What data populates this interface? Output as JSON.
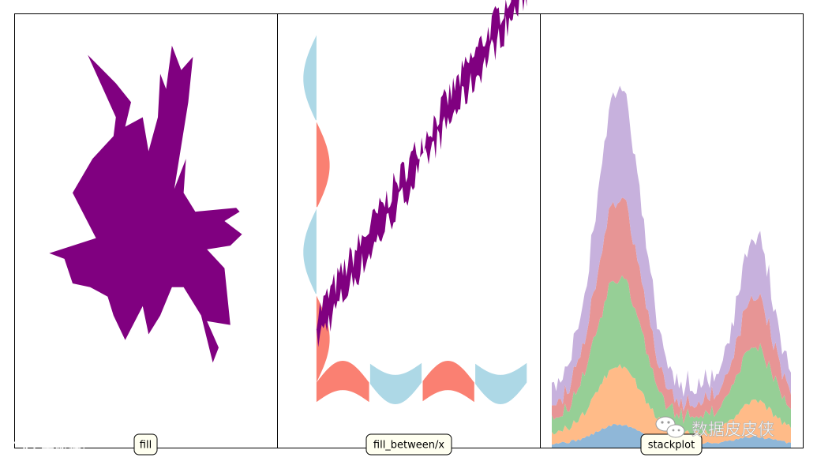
{
  "chart_data": [
    {
      "type": "area",
      "label": "fill",
      "fill_color": "#800080",
      "polygon_xy": [
        [
          -0.95,
          -0.12
        ],
        [
          -0.55,
          -0.04
        ],
        [
          -0.75,
          0.2
        ],
        [
          -0.58,
          0.38
        ],
        [
          -0.4,
          0.5
        ],
        [
          -0.38,
          0.6
        ],
        [
          -0.62,
          0.93
        ],
        [
          -0.38,
          0.78
        ],
        [
          -0.25,
          0.68
        ],
        [
          -0.3,
          0.55
        ],
        [
          -0.15,
          0.6
        ],
        [
          -0.1,
          0.42
        ],
        [
          -0.02,
          0.6
        ],
        [
          0.0,
          0.83
        ],
        [
          0.05,
          0.75
        ],
        [
          0.1,
          0.98
        ],
        [
          0.18,
          0.85
        ],
        [
          0.28,
          0.92
        ],
        [
          0.24,
          0.68
        ],
        [
          0.12,
          0.22
        ],
        [
          0.22,
          0.38
        ],
        [
          0.2,
          0.2
        ],
        [
          0.3,
          0.1
        ],
        [
          0.65,
          0.12
        ],
        [
          0.68,
          0.1
        ],
        [
          0.55,
          0.05
        ],
        [
          0.7,
          -0.02
        ],
        [
          0.6,
          -0.08
        ],
        [
          0.4,
          -0.1
        ],
        [
          0.55,
          -0.2
        ],
        [
          0.6,
          -0.5
        ],
        [
          0.4,
          -0.48
        ],
        [
          0.5,
          -0.62
        ],
        [
          0.45,
          -0.7
        ],
        [
          0.35,
          -0.45
        ],
        [
          0.2,
          -0.3
        ],
        [
          0.1,
          -0.3
        ],
        [
          0.0,
          -0.45
        ],
        [
          -0.1,
          -0.55
        ],
        [
          -0.15,
          -0.4
        ],
        [
          -0.3,
          -0.58
        ],
        [
          -0.4,
          -0.45
        ],
        [
          -0.45,
          -0.35
        ],
        [
          -0.6,
          -0.3
        ],
        [
          -0.75,
          -0.28
        ],
        [
          -0.82,
          -0.15
        ]
      ],
      "xlim": [
        -1.25,
        1.0
      ],
      "ylim": [
        -1.15,
        1.15
      ]
    },
    {
      "type": "area",
      "label": "fill_between/x",
      "colors": {
        "positive": "#fa8072",
        "negative": "#add8e6",
        "diagonal": "#800080"
      },
      "sine_between_x": {
        "amplitude": 1.0,
        "y_range": [
          0,
          16
        ],
        "period": 8
      },
      "sine_between_y": {
        "amplitude": 1.0,
        "x_range": [
          0,
          16
        ],
        "period": 8,
        "baseline": 0
      },
      "diagonal_band": {
        "x_range": [
          0,
          16
        ],
        "slope": 1.0,
        "intercept": 2.5,
        "width": 1.2
      },
      "xlim": [
        -3.0,
        17.0
      ],
      "ylim": [
        -3.0,
        17.0
      ]
    },
    {
      "type": "area",
      "label": "stackplot",
      "series": [
        {
          "color": "#8fb7d8"
        },
        {
          "color": "#ffbb88"
        },
        {
          "color": "#96cf96"
        },
        {
          "color": "#e79595"
        },
        {
          "color": "#c7b1dd"
        }
      ],
      "x_range": [
        0,
        100
      ],
      "ylim": [
        0,
        13
      ]
    }
  ],
  "panels": [
    {
      "label": "fill"
    },
    {
      "label": "fill_between/x"
    },
    {
      "label": "stackplot"
    }
  ],
  "watermark": {
    "left": "大数跨境",
    "right": "数据皮皮侠"
  }
}
